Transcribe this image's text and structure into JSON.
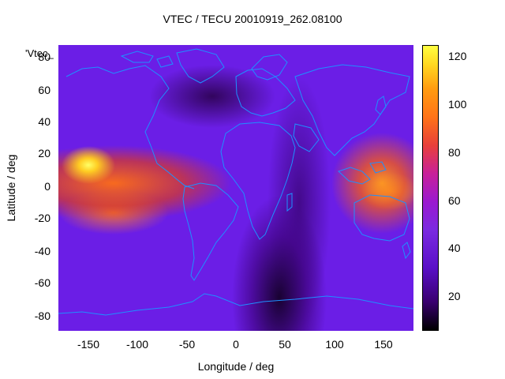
{
  "title": "VTEC / TECU 20010919_262.08100",
  "watermark": "'Vtec_",
  "xlabel": "Longitude / deg",
  "ylabel": "Latitude / deg",
  "xticks": [
    "-150",
    "-100",
    "-50",
    "0",
    "50",
    "100",
    "150"
  ],
  "yticks": [
    "80",
    "60",
    "40",
    "20",
    "0",
    "-20",
    "-40",
    "-60",
    "-80"
  ],
  "colorbar_ticks": [
    "120",
    "100",
    "80",
    "60",
    "40",
    "20"
  ],
  "colors": {
    "coastline": "#1e90ff",
    "low": "#000000",
    "mid": "#6b1ee6",
    "high": "#ffff40"
  }
}
